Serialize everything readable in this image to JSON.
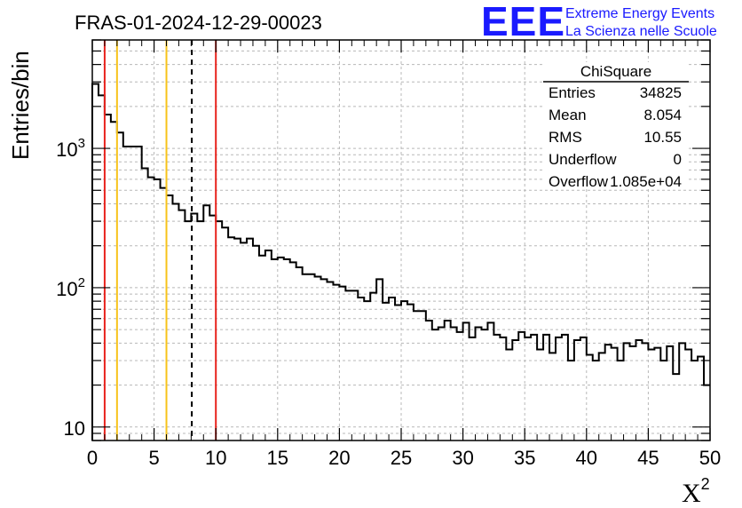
{
  "chart_data": {
    "type": "histogram",
    "title": "FRAS-01-2024-12-29-00023",
    "xlabel": "X",
    "xlabel_superscript": "2",
    "ylabel": "Entries/bin",
    "xlim": [
      0,
      50
    ],
    "ylim_log": [
      8,
      6000
    ],
    "yscale": "log",
    "grid": true,
    "bin_width": 0.5,
    "x_ticks": [
      "0",
      "5",
      "10",
      "15",
      "20",
      "25",
      "30",
      "35",
      "40",
      "45",
      "50"
    ],
    "y_ticks": [
      {
        "value": 10,
        "label": "10",
        "sup": ""
      },
      {
        "value": 100,
        "label": "10",
        "sup": "2"
      },
      {
        "value": 1000,
        "label": "10",
        "sup": "3"
      }
    ],
    "values": [
      2900,
      2400,
      1750,
      1550,
      1300,
      1030,
      1030,
      1030,
      720,
      620,
      600,
      520,
      460,
      400,
      360,
      300,
      340,
      300,
      390,
      330,
      300,
      270,
      230,
      225,
      210,
      225,
      200,
      170,
      185,
      160,
      165,
      160,
      152,
      140,
      125,
      125,
      120,
      115,
      110,
      105,
      102,
      95,
      95,
      85,
      80,
      92,
      115,
      78,
      85,
      75,
      80,
      76,
      68,
      68,
      58,
      50,
      52,
      58,
      52,
      48,
      56,
      44,
      52,
      50,
      56,
      46,
      44,
      36,
      42,
      48,
      44,
      46,
      36,
      46,
      34,
      44,
      46,
      30,
      42,
      44,
      33,
      30,
      34,
      39,
      37,
      30,
      40,
      38,
      42,
      40,
      36,
      37,
      30,
      38,
      24,
      40,
      36,
      30,
      32,
      20
    ],
    "vertical_lines": [
      {
        "x": 1,
        "color": "#e8231d",
        "style": "solid"
      },
      {
        "x": 2,
        "color": "#f7c31a",
        "style": "solid"
      },
      {
        "x": 6,
        "color": "#f7c31a",
        "style": "solid"
      },
      {
        "x": 8.054,
        "color": "#000000",
        "style": "dashed"
      },
      {
        "x": 10,
        "color": "#e8231d",
        "style": "solid"
      }
    ],
    "stats_box": {
      "title": "ChiSquare",
      "rows": [
        {
          "label": "Entries",
          "value": "34825"
        },
        {
          "label": "Mean",
          "value": "8.054"
        },
        {
          "label": "RMS",
          "value": "10.55"
        },
        {
          "label": "Underflow",
          "value": "0"
        },
        {
          "label": "Overflow",
          "value": "1.085e+04"
        }
      ]
    }
  },
  "logo": {
    "mark": "EEE",
    "line1": "Extreme Energy Events",
    "line2": "La Scienza nelle Scuole",
    "color": "#1a1aff"
  }
}
